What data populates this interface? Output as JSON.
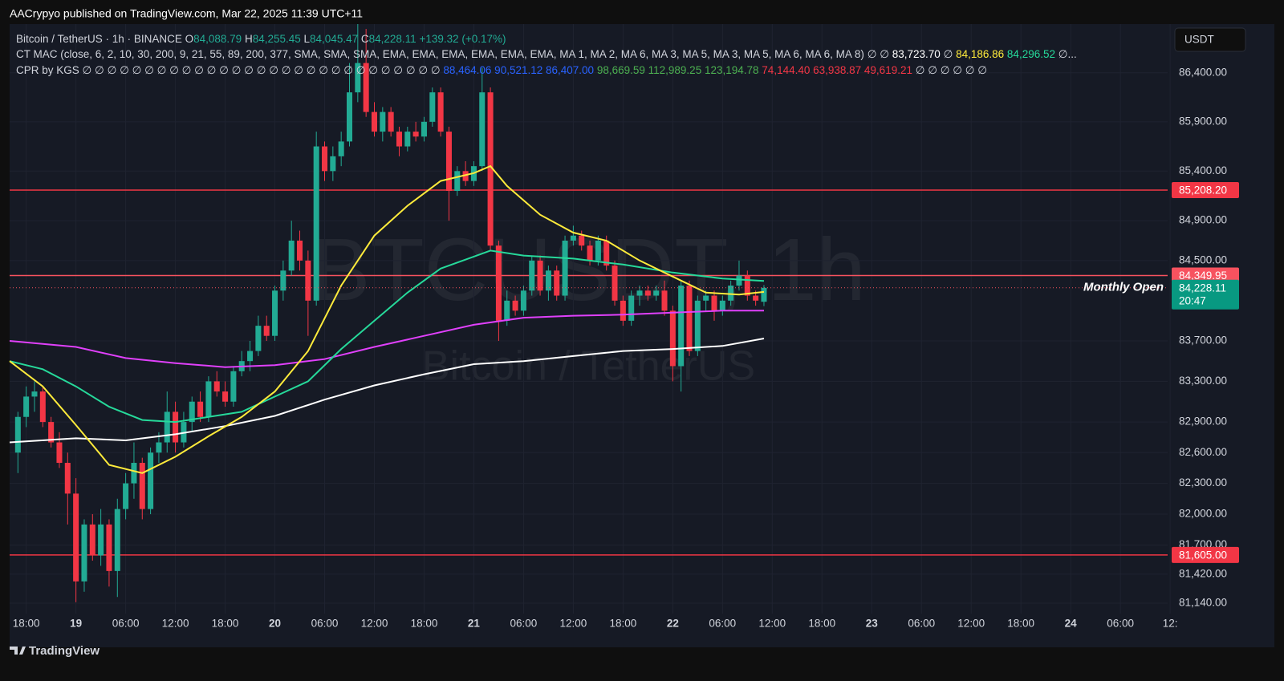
{
  "header": {
    "published": "AACrypyo published on TradingView.com, Mar 22, 2025 11:39 UTC+11",
    "currency": "USDT",
    "brand": "TradingView"
  },
  "legend": {
    "symbol": "Bitcoin / TetherUS · 1h · BINANCE",
    "o_label": "O",
    "o": "84,088.79",
    "h_label": "H",
    "h": "84,255.45",
    "l_label": "L",
    "l": "84,045.47",
    "c_label": "C",
    "c": "84,228.11",
    "change": "+139.32 (+0.17%)",
    "ma_name": "CT MAC (close, 6, 2, 10, 30, 200, 9, 21, 55, 89, 200, 377, SMA, SMA, SMA, EMA, EMA, EMA, EMA, EMA, EMA, MA 1, MA 2, MA 6, MA 3, MA 5, MA 3, MA 5, MA 6, MA 6, MA 8)",
    "ma_empty": "∅ ∅",
    "ma_v1": "83,723.70",
    "ma_empty2": "∅",
    "ma_v2": "84,186.86",
    "ma_v3": "84,296.52",
    "ma_more": "∅...",
    "cpr_name": "CPR by KGS",
    "cpr_empty": "∅ ∅ ∅ ∅ ∅ ∅ ∅ ∅ ∅ ∅ ∅ ∅ ∅ ∅ ∅ ∅ ∅ ∅ ∅ ∅ ∅ ∅ ∅ ∅ ∅ ∅ ∅ ∅ ∅",
    "cpr_blue": "88,464.06 90,521.12 86,407.00",
    "cpr_green": "98,669.59 112,989.25 123,194.78",
    "cpr_red": "74,144.40 63,938.87 49,619.21",
    "cpr_empty2": "∅ ∅ ∅ ∅ ∅ ∅"
  },
  "chart_data": {
    "type": "candlestick",
    "watermark": "BTCUSDT, 1h",
    "watermark_sub": "Bitcoin / TetherUS",
    "log_scale": true,
    "grid": true,
    "up_color": "#22ab94",
    "down_color": "#f23645",
    "xlim": [
      -2,
      137.7
    ],
    "ylim": [
      81040,
      86900
    ],
    "xticks": [
      {
        "value": 0,
        "label": "18:00"
      },
      {
        "value": 6,
        "label": "19"
      },
      {
        "value": 12,
        "label": "06:00"
      },
      {
        "value": 18,
        "label": "12:00"
      },
      {
        "value": 24,
        "label": "18:00"
      },
      {
        "value": 30,
        "label": "20"
      },
      {
        "value": 36,
        "label": "06:00"
      },
      {
        "value": 42,
        "label": "12:00"
      },
      {
        "value": 48,
        "label": "18:00"
      },
      {
        "value": 54,
        "label": "21"
      },
      {
        "value": 60,
        "label": "06:00"
      },
      {
        "value": 66,
        "label": "12:00"
      },
      {
        "value": 72,
        "label": "18:00"
      },
      {
        "value": 78,
        "label": "22"
      },
      {
        "value": 84,
        "label": "06:00"
      },
      {
        "value": 90,
        "label": "12:00"
      },
      {
        "value": 96,
        "label": "18:00"
      },
      {
        "value": 102,
        "label": "23"
      },
      {
        "value": 108,
        "label": "06:00"
      },
      {
        "value": 114,
        "label": "12:00"
      },
      {
        "value": 120,
        "label": "18:00"
      },
      {
        "value": 126,
        "label": "24"
      },
      {
        "value": 132,
        "label": "06:00"
      },
      {
        "value": 138,
        "label": "12:"
      }
    ],
    "yticks": [
      {
        "value": 86400,
        "label": "86,400.00"
      },
      {
        "value": 85900,
        "label": "85,900.00"
      },
      {
        "value": 85400,
        "label": "85,400.00"
      },
      {
        "value": 84900,
        "label": "84,900.00"
      },
      {
        "value": 84500,
        "label": "84,500.00"
      },
      {
        "value": 83700,
        "label": "83,700.00"
      },
      {
        "value": 83300,
        "label": "83,300.00"
      },
      {
        "value": 82900,
        "label": "82,900.00"
      },
      {
        "value": 82600,
        "label": "82,600.00"
      },
      {
        "value": 82300,
        "label": "82,300.00"
      },
      {
        "value": 82000,
        "label": "82,000.00"
      },
      {
        "value": 81700,
        "label": "81,700.00"
      },
      {
        "value": 81420,
        "label": "81,420.00"
      },
      {
        "value": 81140,
        "label": "81,140.00"
      }
    ],
    "x": [
      -1,
      0,
      1,
      2,
      3,
      4,
      5,
      6,
      7,
      8,
      9,
      10,
      11,
      12,
      13,
      14,
      15,
      16,
      17,
      18,
      19,
      20,
      21,
      22,
      23,
      24,
      25,
      26,
      27,
      28,
      29,
      30,
      31,
      32,
      33,
      34,
      35,
      36,
      37,
      38,
      39,
      40,
      41,
      42,
      43,
      44,
      45,
      46,
      47,
      48,
      49,
      50,
      51,
      52,
      53,
      54,
      55,
      56,
      57,
      58,
      59,
      60,
      61,
      62,
      63,
      64,
      65,
      66,
      67,
      68,
      69,
      70,
      71,
      72,
      73,
      74,
      75,
      76,
      77,
      78,
      79,
      80,
      81,
      82,
      83,
      84,
      85,
      86,
      87,
      88,
      89
    ],
    "ohlc": [
      [
        82600,
        83000,
        82400,
        82950
      ],
      [
        82950,
        83250,
        82850,
        83150
      ],
      [
        83150,
        83300,
        83000,
        83200
      ],
      [
        83200,
        83250,
        82850,
        82900
      ],
      [
        82900,
        82950,
        82650,
        82700
      ],
      [
        82700,
        82800,
        82450,
        82500
      ],
      [
        82500,
        82600,
        81900,
        82200
      ],
      [
        82200,
        82350,
        81150,
        81350
      ],
      [
        81350,
        81950,
        81250,
        81900
      ],
      [
        81900,
        82000,
        81550,
        81600
      ],
      [
        81600,
        82050,
        81500,
        81900
      ],
      [
        81900,
        81950,
        81300,
        81450
      ],
      [
        81450,
        82150,
        81200,
        82050
      ],
      [
        82050,
        82400,
        81950,
        82300
      ],
      [
        82300,
        82700,
        82150,
        82500
      ],
      [
        82500,
        82550,
        81950,
        82050
      ],
      [
        82050,
        82650,
        82000,
        82600
      ],
      [
        82600,
        82800,
        82500,
        82700
      ],
      [
        82700,
        83200,
        82600,
        83000
      ],
      [
        83000,
        83100,
        82600,
        82700
      ],
      [
        82700,
        83000,
        82650,
        82900
      ],
      [
        82900,
        83150,
        82800,
        83100
      ],
      [
        83100,
        83200,
        82900,
        82950
      ],
      [
        82950,
        83350,
        82900,
        83300
      ],
      [
        83300,
        83400,
        83150,
        83200
      ],
      [
        83200,
        83300,
        83050,
        83100
      ],
      [
        83100,
        83450,
        83050,
        83400
      ],
      [
        83400,
        83600,
        83350,
        83500
      ],
      [
        83500,
        83700,
        83400,
        83600
      ],
      [
        83600,
        83950,
        83550,
        83850
      ],
      [
        83850,
        83950,
        83700,
        83750
      ],
      [
        83750,
        84250,
        83700,
        84200
      ],
      [
        84200,
        84500,
        84100,
        84400
      ],
      [
        84400,
        84900,
        84350,
        84700
      ],
      [
        84700,
        84800,
        84400,
        84500
      ],
      [
        84500,
        84600,
        83750,
        84100
      ],
      [
        84100,
        85800,
        84050,
        85650
      ],
      [
        85650,
        85700,
        85300,
        85400
      ],
      [
        85400,
        85650,
        85300,
        85550
      ],
      [
        85550,
        85800,
        85450,
        85700
      ],
      [
        85700,
        86500,
        85650,
        86200
      ],
      [
        86200,
        86900,
        86100,
        86500
      ],
      [
        86500,
        86850,
        85950,
        86000
      ],
      [
        86000,
        86100,
        85750,
        85800
      ],
      [
        85800,
        86050,
        85700,
        86000
      ],
      [
        86000,
        86050,
        85750,
        85800
      ],
      [
        85800,
        85850,
        85550,
        85650
      ],
      [
        85650,
        85850,
        85600,
        85800
      ],
      [
        85800,
        85900,
        85700,
        85750
      ],
      [
        85750,
        85950,
        85700,
        85900
      ],
      [
        85900,
        86250,
        85850,
        86200
      ],
      [
        86200,
        86250,
        85750,
        85800
      ],
      [
        85800,
        85850,
        84900,
        85200
      ],
      [
        85200,
        85450,
        85150,
        85400
      ],
      [
        85400,
        85500,
        85250,
        85300
      ],
      [
        85300,
        85500,
        85250,
        85450
      ],
      [
        85450,
        86450,
        85400,
        86200
      ],
      [
        86200,
        86250,
        84600,
        84650
      ],
      [
        84650,
        84700,
        83700,
        83900
      ],
      [
        83900,
        84200,
        83850,
        84100
      ],
      [
        84100,
        84150,
        83950,
        84000
      ],
      [
        84000,
        84250,
        83950,
        84200
      ],
      [
        84200,
        84550,
        84150,
        84500
      ],
      [
        84500,
        84550,
        84150,
        84200
      ],
      [
        84200,
        84450,
        84100,
        84400
      ],
      [
        84400,
        84450,
        84100,
        84150
      ],
      [
        84150,
        84750,
        84100,
        84700
      ],
      [
        84700,
        84850,
        84650,
        84750
      ],
      [
        84750,
        84800,
        84600,
        84650
      ],
      [
        84650,
        84700,
        84450,
        84500
      ],
      [
        84500,
        84750,
        84450,
        84700
      ],
      [
        84700,
        84750,
        84400,
        84450
      ],
      [
        84450,
        84500,
        84050,
        84100
      ],
      [
        84100,
        84150,
        83850,
        83900
      ],
      [
        83900,
        84200,
        83850,
        84150
      ],
      [
        84150,
        84250,
        84050,
        84200
      ],
      [
        84200,
        84250,
        84100,
        84150
      ],
      [
        84150,
        84250,
        84100,
        84200
      ],
      [
        84200,
        84300,
        83950,
        84000
      ],
      [
        84000,
        84050,
        83300,
        83450
      ],
      [
        83450,
        84300,
        83200,
        84250
      ],
      [
        84250,
        84300,
        83550,
        83600
      ],
      [
        83600,
        84150,
        83550,
        84100
      ],
      [
        84100,
        84200,
        84000,
        84150
      ],
      [
        84150,
        84200,
        83900,
        84000
      ],
      [
        84000,
        84150,
        83950,
        84100
      ],
      [
        84100,
        84300,
        84050,
        84250
      ],
      [
        84250,
        84500,
        84200,
        84350
      ],
      [
        84350,
        84400,
        84100,
        84150
      ],
      [
        84150,
        84200,
        84050,
        84100
      ],
      [
        84088.79,
        84255.45,
        84045.47,
        84228.11
      ]
    ],
    "series": [
      {
        "color": "#ffffff",
        "x": [
          -2,
          6,
          12,
          18,
          24,
          30,
          36,
          42,
          48,
          54,
          60,
          66,
          72,
          78,
          84,
          89
        ],
        "values": [
          82700,
          82740,
          82720,
          82780,
          82860,
          82960,
          83120,
          83260,
          83370,
          83470,
          83500,
          83550,
          83600,
          83620,
          83650,
          83723.7
        ]
      },
      {
        "color": "#e040fb",
        "x": [
          -2,
          6,
          12,
          18,
          24,
          30,
          36,
          42,
          48,
          54,
          60,
          66,
          72,
          78,
          84,
          89
        ],
        "values": [
          83700,
          83640,
          83530,
          83480,
          83440,
          83460,
          83520,
          83640,
          83750,
          83860,
          83930,
          83950,
          83960,
          83980,
          84000,
          84000
        ]
      },
      {
        "color": "#26d99a",
        "x": [
          -2,
          2,
          6,
          10,
          14,
          18,
          22,
          26,
          30,
          34,
          38,
          42,
          46,
          50,
          54,
          56,
          60,
          66,
          72,
          78,
          84,
          89
        ],
        "values": [
          83500,
          83420,
          83250,
          83050,
          82920,
          82900,
          82950,
          83000,
          83150,
          83300,
          83620,
          83900,
          84180,
          84420,
          84540,
          84600,
          84550,
          84520,
          84460,
          84380,
          84320,
          84296.52
        ]
      },
      {
        "color": "#ffeb3b",
        "x": [
          -2,
          2,
          6,
          10,
          14,
          18,
          22,
          26,
          30,
          34,
          38,
          42,
          46,
          50,
          54,
          56,
          58,
          62,
          66,
          70,
          74,
          78,
          82,
          86,
          89
        ],
        "values": [
          83500,
          83250,
          82870,
          82480,
          82400,
          82560,
          82760,
          82950,
          83200,
          83600,
          84250,
          84750,
          85050,
          85300,
          85380,
          85450,
          85250,
          84960,
          84780,
          84700,
          84500,
          84340,
          84180,
          84160,
          84186.86
        ]
      }
    ],
    "levels": [
      {
        "value": 85208.2,
        "label": "85,208.20",
        "color": "#f23645"
      },
      {
        "value": 84349.95,
        "label": "84,349.95",
        "color": "#f7525f"
      },
      {
        "value": 81605,
        "label": "81,605.00",
        "color": "#f23645"
      }
    ],
    "last_price": {
      "value": 84228.11,
      "label": "84,228.11",
      "countdown": "20:47",
      "color": "#089981"
    },
    "annotation": "Monthly Open"
  }
}
